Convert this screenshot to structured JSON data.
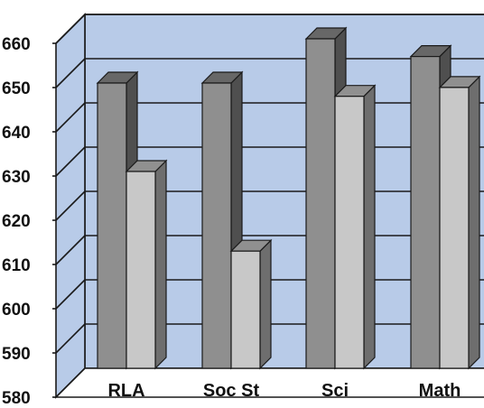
{
  "chart_data": {
    "type": "bar",
    "categories": [
      "RLA",
      "Soc St",
      "Sci",
      "Math"
    ],
    "series": [
      {
        "color": "#8f8f8f",
        "values": [
          650,
          650,
          660,
          656
        ]
      },
      {
        "color": "#c8c8c8",
        "values": [
          630,
          612,
          647,
          649
        ]
      }
    ],
    "ylim": [
      580,
      660
    ],
    "yticks": [
      "580",
      "590",
      "600",
      "610",
      "620",
      "630",
      "640",
      "650",
      "660"
    ],
    "grid": true,
    "legend": "none",
    "three_d": true,
    "colors": {
      "plot_wall": "#b8cbe8",
      "floor": "#ffffff",
      "grid": "#1a1a1a"
    }
  }
}
